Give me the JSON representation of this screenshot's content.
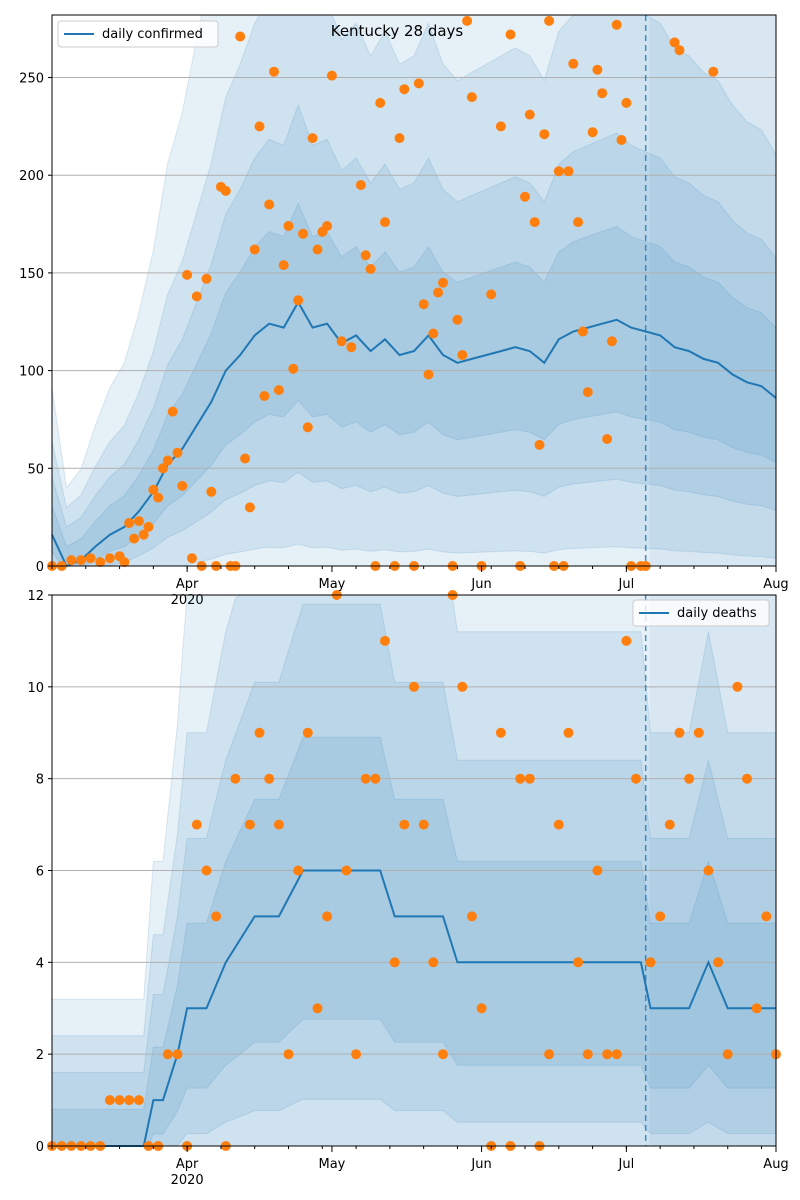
{
  "figure_title": "Kentucky 28 days",
  "colors": {
    "line": "#1f77b4",
    "dots": "#ff7f0e",
    "band": "#1f77b4",
    "grid": "#b0b0b0",
    "forecast_shade": "#e6eef6"
  },
  "chart_data": [
    {
      "type": "line",
      "legend": "daily confirmed",
      "legend_position": "top-left",
      "title": "Kentucky 28 days",
      "x_domain": [
        "2020-03-04",
        "2020-08-01"
      ],
      "xtick_labels": [
        "Apr\n2020",
        "May",
        "Jun",
        "Jul",
        "Aug"
      ],
      "ylim": [
        0,
        282
      ],
      "yticks": [
        0,
        50,
        100,
        150,
        200,
        250
      ],
      "grid": "horizontal",
      "forecast_start": "2020-07-05",
      "series": [
        {
          "name": "daily confirmed",
          "kind": "line",
          "x": [
            "2020-03-04",
            "2020-03-07",
            "2020-03-10",
            "2020-03-13",
            "2020-03-16",
            "2020-03-19",
            "2020-03-22",
            "2020-03-25",
            "2020-03-28",
            "2020-03-31",
            "2020-04-03",
            "2020-04-06",
            "2020-04-09",
            "2020-04-12",
            "2020-04-15",
            "2020-04-18",
            "2020-04-21",
            "2020-04-24",
            "2020-04-27",
            "2020-04-30",
            "2020-05-03",
            "2020-05-06",
            "2020-05-09",
            "2020-05-12",
            "2020-05-15",
            "2020-05-18",
            "2020-05-21",
            "2020-05-24",
            "2020-05-27",
            "2020-05-30",
            "2020-06-02",
            "2020-06-05",
            "2020-06-08",
            "2020-06-11",
            "2020-06-14",
            "2020-06-17",
            "2020-06-20",
            "2020-06-23",
            "2020-06-26",
            "2020-06-29",
            "2020-07-02",
            "2020-07-05",
            "2020-07-08",
            "2020-07-11",
            "2020-07-14",
            "2020-07-17",
            "2020-07-20",
            "2020-07-23",
            "2020-07-26",
            "2020-07-29",
            "2020-08-01"
          ],
          "y": [
            16,
            0,
            3,
            10,
            16,
            20,
            28,
            38,
            52,
            60,
            72,
            84,
            100,
            108,
            118,
            124,
            122,
            135,
            122,
            124,
            114,
            118,
            110,
            116,
            108,
            110,
            118,
            108,
            104,
            106,
            108,
            110,
            112,
            110,
            104,
            116,
            120,
            122,
            124,
            126,
            122,
            120,
            118,
            112,
            110,
            106,
            104,
            98,
            94,
            92,
            86
          ]
        },
        {
          "name": "observed",
          "kind": "scatter",
          "x": [
            "2020-03-04",
            "2020-03-06",
            "2020-03-08",
            "2020-03-10",
            "2020-03-12",
            "2020-03-14",
            "2020-03-16",
            "2020-03-18",
            "2020-03-19",
            "2020-03-20",
            "2020-03-21",
            "2020-03-22",
            "2020-03-23",
            "2020-03-24",
            "2020-03-25",
            "2020-03-26",
            "2020-03-27",
            "2020-03-28",
            "2020-03-29",
            "2020-03-30",
            "2020-03-31",
            "2020-04-01",
            "2020-04-02",
            "2020-04-03",
            "2020-04-04",
            "2020-04-05",
            "2020-04-06",
            "2020-04-07",
            "2020-04-08",
            "2020-04-09",
            "2020-04-10",
            "2020-04-11",
            "2020-04-12",
            "2020-04-13",
            "2020-04-14",
            "2020-04-15",
            "2020-04-16",
            "2020-04-17",
            "2020-04-18",
            "2020-04-19",
            "2020-04-20",
            "2020-04-21",
            "2020-04-22",
            "2020-04-23",
            "2020-04-24",
            "2020-04-25",
            "2020-04-26",
            "2020-04-27",
            "2020-04-28",
            "2020-04-29",
            "2020-04-30",
            "2020-05-01",
            "2020-05-03",
            "2020-05-05",
            "2020-05-07",
            "2020-05-08",
            "2020-05-09",
            "2020-05-10",
            "2020-05-11",
            "2020-05-12",
            "2020-05-14",
            "2020-05-15",
            "2020-05-16",
            "2020-05-18",
            "2020-05-19",
            "2020-05-20",
            "2020-05-21",
            "2020-05-22",
            "2020-05-23",
            "2020-05-24",
            "2020-05-26",
            "2020-05-27",
            "2020-05-28",
            "2020-05-29",
            "2020-05-30",
            "2020-06-01",
            "2020-06-03",
            "2020-06-05",
            "2020-06-07",
            "2020-06-09",
            "2020-06-10",
            "2020-06-11",
            "2020-06-12",
            "2020-06-13",
            "2020-06-14",
            "2020-06-15",
            "2020-06-16",
            "2020-06-17",
            "2020-06-18",
            "2020-06-19",
            "2020-06-20",
            "2020-06-21",
            "2020-06-22",
            "2020-06-23",
            "2020-06-24",
            "2020-06-25",
            "2020-06-26",
            "2020-06-27",
            "2020-06-28",
            "2020-06-29",
            "2020-06-30",
            "2020-07-01",
            "2020-07-02",
            "2020-07-04",
            "2020-07-05",
            "2020-07-11",
            "2020-07-12",
            "2020-07-19"
          ],
          "y": [
            0,
            0,
            3,
            3,
            4,
            2,
            4,
            5,
            2,
            22,
            14,
            23,
            16,
            20,
            39,
            35,
            50,
            54,
            79,
            58,
            41,
            149,
            4,
            138,
            0,
            147,
            38,
            0,
            194,
            192,
            0,
            0,
            271,
            55,
            30,
            162,
            225,
            87,
            185,
            253,
            90,
            154,
            174,
            101,
            136,
            170,
            71,
            219,
            162,
            171,
            174,
            251,
            115,
            112,
            195,
            159,
            152,
            0,
            237,
            176,
            0,
            219,
            244,
            0,
            247,
            134,
            98,
            119,
            140,
            145,
            0,
            126,
            108,
            279,
            240,
            0,
            139,
            225,
            272,
            0,
            189,
            231,
            176,
            62,
            221,
            279,
            0,
            202,
            0,
            202,
            257,
            176,
            120,
            89,
            222,
            254,
            242,
            65,
            115,
            277,
            218,
            237,
            0,
            0,
            0,
            268,
            264,
            253
          ]
        }
      ]
    },
    {
      "type": "line",
      "legend": "daily deaths",
      "legend_position": "top-right",
      "x_domain": [
        "2020-03-04",
        "2020-08-01"
      ],
      "xtick_labels": [
        "Apr\n2020",
        "May",
        "Jun",
        "Jul",
        "Aug"
      ],
      "ylim": [
        0,
        12
      ],
      "yticks": [
        0,
        2,
        4,
        6,
        8,
        10,
        12
      ],
      "grid": "horizontal",
      "forecast_start": "2020-07-05",
      "series": [
        {
          "name": "daily deaths",
          "kind": "line",
          "x": [
            "2020-03-04",
            "2020-03-20",
            "2020-03-23",
            "2020-03-25",
            "2020-03-27",
            "2020-03-30",
            "2020-04-01",
            "2020-04-05",
            "2020-04-09",
            "2020-04-15",
            "2020-04-20",
            "2020-04-25",
            "2020-05-01",
            "2020-05-06",
            "2020-05-11",
            "2020-05-14",
            "2020-05-18",
            "2020-05-21",
            "2020-05-24",
            "2020-05-27",
            "2020-05-30",
            "2020-06-05",
            "2020-06-10",
            "2020-06-15",
            "2020-06-20",
            "2020-06-25",
            "2020-06-28",
            "2020-07-01",
            "2020-07-04",
            "2020-07-06",
            "2020-07-10",
            "2020-07-14",
            "2020-07-18",
            "2020-07-22",
            "2020-07-26",
            "2020-08-01"
          ],
          "y": [
            0,
            0,
            0,
            1,
            1,
            2,
            3,
            3,
            4,
            5,
            5,
            6,
            6,
            6,
            6,
            5,
            5,
            5,
            5,
            4,
            4,
            4,
            4,
            4,
            4,
            4,
            4,
            4,
            4,
            3,
            3,
            3,
            4,
            3,
            3,
            3
          ]
        },
        {
          "name": "observed",
          "kind": "scatter",
          "x": [
            "2020-03-04",
            "2020-03-06",
            "2020-03-08",
            "2020-03-10",
            "2020-03-12",
            "2020-03-14",
            "2020-03-16",
            "2020-03-18",
            "2020-03-20",
            "2020-03-22",
            "2020-03-24",
            "2020-03-26",
            "2020-03-28",
            "2020-03-30",
            "2020-04-01",
            "2020-04-03",
            "2020-04-05",
            "2020-04-07",
            "2020-04-09",
            "2020-04-11",
            "2020-04-14",
            "2020-04-16",
            "2020-04-18",
            "2020-04-20",
            "2020-04-22",
            "2020-04-24",
            "2020-04-26",
            "2020-04-28",
            "2020-04-30",
            "2020-05-02",
            "2020-05-04",
            "2020-05-06",
            "2020-05-08",
            "2020-05-10",
            "2020-05-12",
            "2020-05-14",
            "2020-05-16",
            "2020-05-18",
            "2020-05-20",
            "2020-05-22",
            "2020-05-24",
            "2020-05-26",
            "2020-05-28",
            "2020-05-30",
            "2020-06-01",
            "2020-06-03",
            "2020-06-05",
            "2020-06-07",
            "2020-06-09",
            "2020-06-11",
            "2020-06-13",
            "2020-06-15",
            "2020-06-17",
            "2020-06-19",
            "2020-06-21",
            "2020-06-23",
            "2020-06-25",
            "2020-06-27",
            "2020-06-29",
            "2020-07-01",
            "2020-07-03",
            "2020-07-06",
            "2020-07-08",
            "2020-07-10",
            "2020-07-12",
            "2020-07-14",
            "2020-07-16",
            "2020-07-18",
            "2020-07-20",
            "2020-07-22",
            "2020-07-24",
            "2020-07-26",
            "2020-07-28",
            "2020-07-30",
            "2020-08-01"
          ],
          "y": [
            0,
            0,
            0,
            0,
            0,
            0,
            1,
            1,
            1,
            1,
            0,
            0,
            2,
            2,
            0,
            7,
            6,
            5,
            0,
            8,
            7,
            9,
            8,
            7,
            2,
            6,
            9,
            3,
            5,
            12,
            6,
            2,
            8,
            8,
            11,
            4,
            7,
            10,
            7,
            4,
            2,
            12,
            10,
            5,
            3,
            0,
            9,
            0,
            8,
            8,
            0,
            2,
            7,
            9,
            4,
            2,
            6,
            2,
            2,
            11,
            8,
            4,
            5,
            7,
            9,
            8,
            9,
            6,
            4,
            2,
            10,
            8,
            3,
            5,
            2
          ]
        }
      ]
    }
  ]
}
